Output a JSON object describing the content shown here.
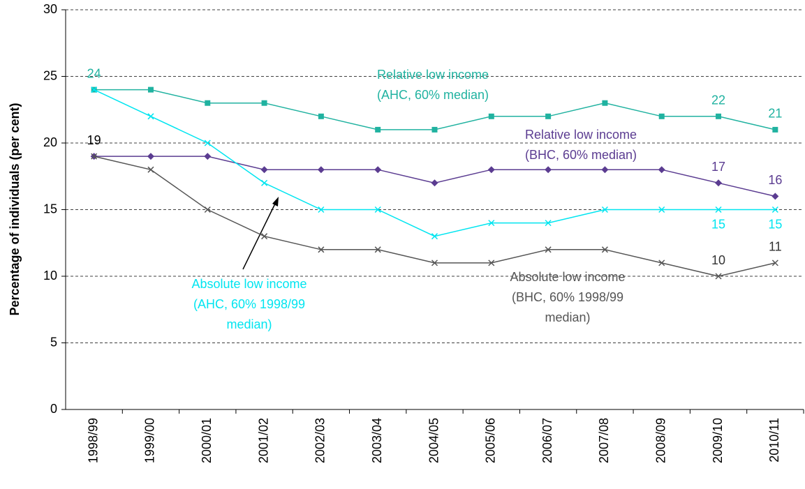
{
  "chart_data": {
    "type": "line",
    "y_label": "Percentage of individuals (per cent)",
    "categories": [
      "1998/99",
      "1999/00",
      "2000/01",
      "2001/02",
      "2002/03",
      "2003/04",
      "2004/05",
      "2005/06",
      "2006/07",
      "2007/08",
      "2008/09",
      "2009/10",
      "2010/11"
    ],
    "ylim": [
      0,
      30
    ],
    "yticks": [
      0,
      5,
      10,
      15,
      20,
      25,
      30
    ],
    "grid": true,
    "series": [
      {
        "name": "Relative low income",
        "detail": [
          "(AHC, 60% median)"
        ],
        "color": "#20b2a0",
        "marker": "square",
        "values": [
          24,
          24,
          23,
          23,
          22,
          21,
          21,
          22,
          22,
          23,
          22,
          22,
          21
        ],
        "labeled": [
          0,
          11,
          12
        ]
      },
      {
        "name": "Relative low income",
        "detail": [
          "(BHC, 60% median)"
        ],
        "color": "#5b3c91",
        "marker": "diamond",
        "values": [
          19,
          19,
          19,
          18,
          18,
          18,
          17,
          18,
          18,
          18,
          18,
          17,
          16
        ],
        "labeled": [
          11,
          12
        ]
      },
      {
        "name": "Absolute low income",
        "detail": [
          "(AHC, 60% 1998/99",
          "median)"
        ],
        "color": "#00e5f0",
        "marker": "cross",
        "values": [
          24,
          22,
          20,
          17,
          15,
          15,
          13,
          14,
          14,
          15,
          15,
          15,
          15
        ],
        "labeled": [
          11,
          12
        ]
      },
      {
        "name": "Absolute low income",
        "detail": [
          "(BHC, 60% 1998/99",
          "median)"
        ],
        "color": "#555555",
        "marker": "cross",
        "values": [
          19,
          18,
          15,
          13,
          12,
          12,
          11,
          11,
          12,
          12,
          11,
          10,
          11
        ],
        "labeled": [
          0,
          11,
          12
        ]
      }
    ]
  }
}
